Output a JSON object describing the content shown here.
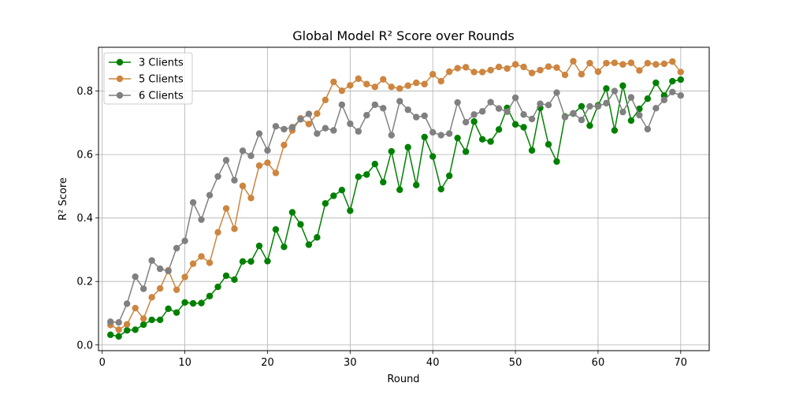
{
  "chart_data": {
    "type": "line",
    "title": "Global Model R² Score over Rounds",
    "xlabel": "Round",
    "ylabel": "R² Score",
    "xlim": [
      -0.45,
      73.45
    ],
    "ylim": [
      -0.018,
      0.938
    ],
    "xticks": [
      0,
      10,
      20,
      30,
      40,
      50,
      60,
      70
    ],
    "yticks": [
      0.0,
      0.2,
      0.4,
      0.6,
      0.8
    ],
    "xtick_labels": [
      "0",
      "10",
      "20",
      "30",
      "40",
      "50",
      "60",
      "70"
    ],
    "ytick_labels": [
      "0.0",
      "0.2",
      "0.4",
      "0.6",
      "0.8"
    ],
    "grid": true,
    "legend_position": "top-left",
    "x": [
      1,
      2,
      3,
      4,
      5,
      6,
      7,
      8,
      9,
      10,
      11,
      12,
      13,
      14,
      15,
      16,
      17,
      18,
      19,
      20,
      21,
      22,
      23,
      24,
      25,
      26,
      27,
      28,
      29,
      30,
      31,
      32,
      33,
      34,
      35,
      36,
      37,
      38,
      39,
      40,
      41,
      42,
      43,
      44,
      45,
      46,
      47,
      48,
      49,
      50,
      51,
      52,
      53,
      54,
      55,
      56,
      57,
      58,
      59,
      60,
      61,
      62,
      63,
      64,
      65,
      66,
      67,
      68,
      69,
      70
    ],
    "series": [
      {
        "name": "3 Clients",
        "color": "#008000",
        "values": [
          0.032,
          0.027,
          0.046,
          0.048,
          0.064,
          0.079,
          0.079,
          0.114,
          0.102,
          0.134,
          0.131,
          0.132,
          0.154,
          0.183,
          0.218,
          0.206,
          0.263,
          0.263,
          0.312,
          0.264,
          0.364,
          0.309,
          0.418,
          0.38,
          0.316,
          0.339,
          0.446,
          0.47,
          0.488,
          0.423,
          0.53,
          0.537,
          0.57,
          0.513,
          0.61,
          0.489,
          0.623,
          0.504,
          0.655,
          0.594,
          0.491,
          0.533,
          0.652,
          0.609,
          0.704,
          0.648,
          0.641,
          0.679,
          0.747,
          0.695,
          0.686,
          0.613,
          0.747,
          0.632,
          0.578,
          0.72,
          0.729,
          0.752,
          0.691,
          0.755,
          0.808,
          0.676,
          0.817,
          0.707,
          0.744,
          0.776,
          0.826,
          0.786,
          0.831,
          0.836
        ]
      },
      {
        "name": "5 Clients",
        "color": "#cd853f",
        "values": [
          0.063,
          0.048,
          0.065,
          0.116,
          0.083,
          0.15,
          0.178,
          0.235,
          0.174,
          0.214,
          0.256,
          0.279,
          0.259,
          0.355,
          0.43,
          0.366,
          0.501,
          0.463,
          0.565,
          0.574,
          0.542,
          0.63,
          0.676,
          0.714,
          0.696,
          0.729,
          0.772,
          0.829,
          0.801,
          0.818,
          0.839,
          0.822,
          0.813,
          0.837,
          0.813,
          0.808,
          0.817,
          0.826,
          0.822,
          0.853,
          0.831,
          0.861,
          0.872,
          0.875,
          0.86,
          0.86,
          0.866,
          0.876,
          0.871,
          0.884,
          0.876,
          0.857,
          0.866,
          0.877,
          0.874,
          0.851,
          0.894,
          0.853,
          0.888,
          0.861,
          0.888,
          0.889,
          0.884,
          0.889,
          0.865,
          0.888,
          0.884,
          0.886,
          0.893,
          0.86
        ]
      },
      {
        "name": "6 Clients",
        "color": "#808080",
        "values": [
          0.073,
          0.071,
          0.13,
          0.215,
          0.177,
          0.266,
          0.24,
          0.233,
          0.305,
          0.328,
          0.449,
          0.395,
          0.472,
          0.531,
          0.582,
          0.519,
          0.612,
          0.596,
          0.666,
          0.613,
          0.689,
          0.68,
          0.686,
          0.711,
          0.728,
          0.666,
          0.683,
          0.676,
          0.757,
          0.697,
          0.673,
          0.724,
          0.757,
          0.746,
          0.661,
          0.768,
          0.741,
          0.718,
          0.722,
          0.67,
          0.661,
          0.666,
          0.764,
          0.702,
          0.726,
          0.736,
          0.765,
          0.745,
          0.735,
          0.779,
          0.726,
          0.712,
          0.76,
          0.756,
          0.795,
          0.718,
          0.73,
          0.709,
          0.752,
          0.752,
          0.762,
          0.8,
          0.734,
          0.78,
          0.724,
          0.68,
          0.746,
          0.772,
          0.797,
          0.786
        ]
      }
    ]
  }
}
